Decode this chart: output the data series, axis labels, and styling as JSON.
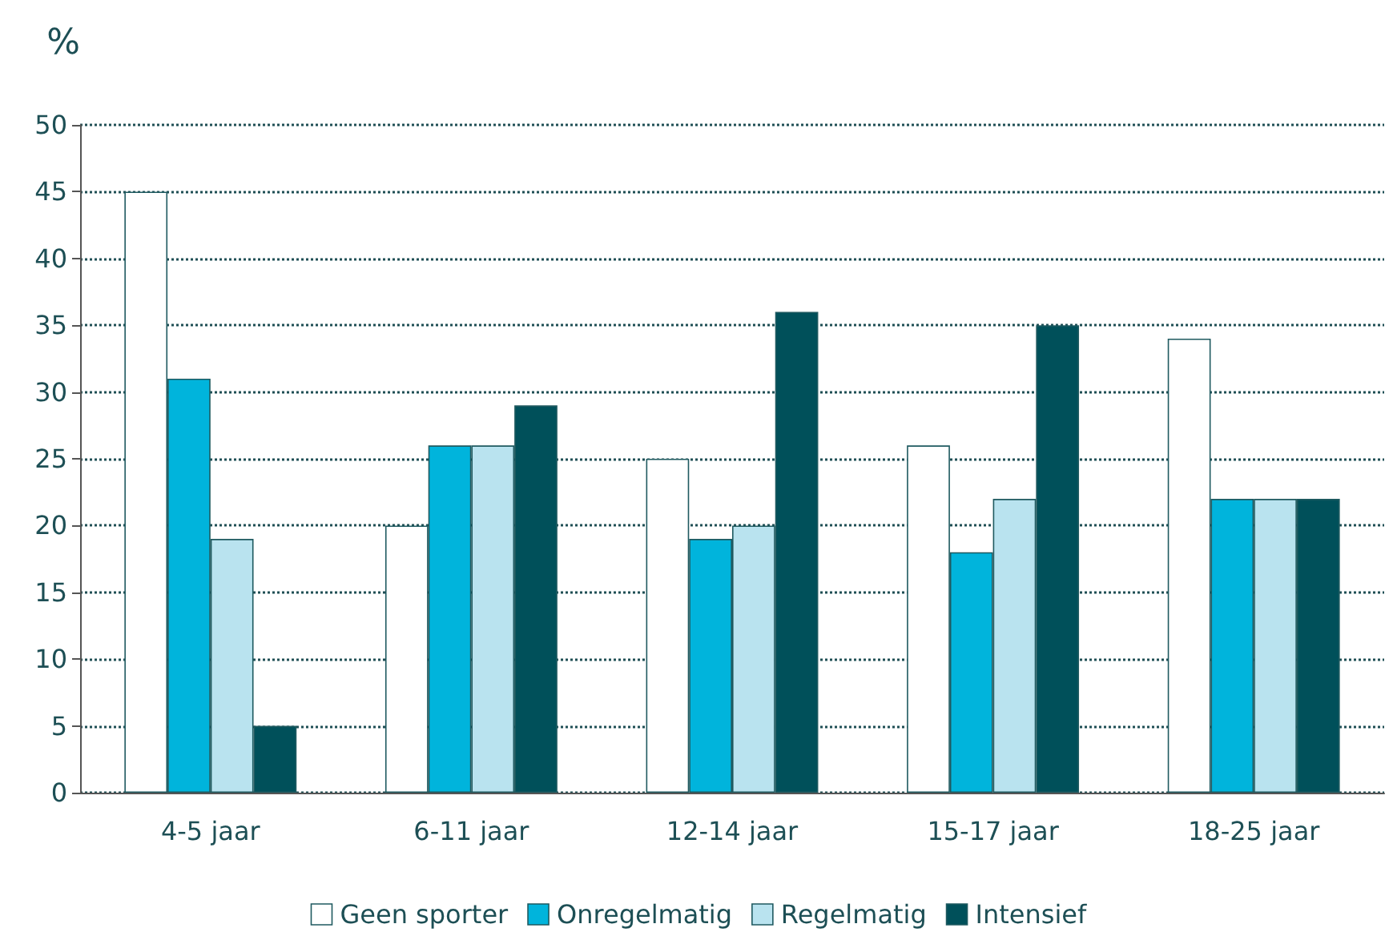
{
  "chart_data": {
    "type": "bar",
    "ylabel": "%",
    "categories": [
      "4-5 jaar",
      "6-11 jaar",
      "12-14 jaar",
      "15-17 jaar",
      "18-25 jaar"
    ],
    "series": [
      {
        "name": "Geen sporter",
        "color": "#ffffff",
        "values": [
          45,
          20,
          25,
          26,
          34
        ]
      },
      {
        "name": "Onregelmatig",
        "color": "#00b4dc",
        "values": [
          31,
          26,
          19,
          18,
          22
        ]
      },
      {
        "name": "Regelmatig",
        "color": "#b9e3ef",
        "values": [
          19,
          26,
          20,
          22,
          22
        ]
      },
      {
        "name": "Intensief",
        "color": "#00505a",
        "values": [
          5,
          29,
          36,
          35,
          22
        ]
      }
    ],
    "ylim": [
      0,
      50
    ],
    "yticks": [
      0,
      5,
      10,
      15,
      20,
      25,
      30,
      35,
      40,
      45,
      50
    ],
    "grid": "y",
    "legend": "bottom"
  }
}
